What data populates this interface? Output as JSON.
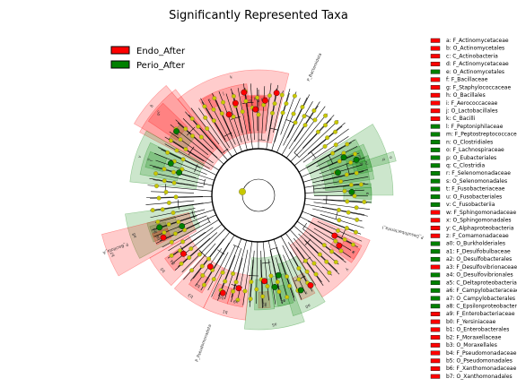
{
  "chart_data": {
    "type": "cladogram",
    "title": "Significantly Represented Taxa",
    "groups": [
      {
        "name": "Endo_After",
        "color": "#ff0000"
      },
      {
        "name": "Perio_After",
        "color": "#008000"
      }
    ],
    "node_color_not_significant": "#c8c800",
    "clades": [
      {
        "key": "a",
        "name": "F_Actinomycetaceae",
        "group": "Endo_After",
        "sector_label": "a"
      },
      {
        "key": "b",
        "name": "O_Actinomycetales",
        "group": "Endo_After",
        "sector_label": "b"
      },
      {
        "key": "c",
        "name": "C_Actinobacteria",
        "group": "Endo_After",
        "sector_label": "c"
      },
      {
        "key": "d",
        "name": "F_Actinomycetaceae",
        "group": "Endo_After",
        "sector_label": "d"
      },
      {
        "key": "e",
        "name": "O_Actinomycetales",
        "group": "Perio_After",
        "sector_label": "e"
      },
      {
        "key": "f",
        "name": "F_Bacillaceae",
        "group": "Endo_After",
        "sector_label": "f"
      },
      {
        "key": "g",
        "name": "F_Staphylococcaceae",
        "group": "Endo_After",
        "sector_label": "g"
      },
      {
        "key": "h",
        "name": "O_Bacillales",
        "group": "Endo_After",
        "sector_label": "h"
      },
      {
        "key": "i",
        "name": "F_Aerococcaceae",
        "group": "Endo_After",
        "sector_label": "i"
      },
      {
        "key": "j",
        "name": "O_Lactobacillales",
        "group": "Endo_After",
        "sector_label": "j"
      },
      {
        "key": "k",
        "name": "C_Bacilli",
        "group": "Endo_After",
        "sector_label": "k"
      },
      {
        "key": "l",
        "name": "F_Peptoniphilaceae",
        "group": "Perio_After",
        "sector_label": "l"
      },
      {
        "key": "m",
        "name": "F_Peptostreptococcaceae",
        "group": "Perio_After",
        "sector_label": "m"
      },
      {
        "key": "n",
        "name": "O_Clostridiales",
        "group": "Perio_After",
        "sector_label": "n"
      },
      {
        "key": "o",
        "name": "F_Lachnospiraceae",
        "group": "Perio_After",
        "sector_label": "o"
      },
      {
        "key": "p",
        "name": "O_Eubacteriales",
        "group": "Perio_After",
        "sector_label": "p"
      },
      {
        "key": "q",
        "name": "C_Clostridia",
        "group": "Perio_After",
        "sector_label": "q"
      },
      {
        "key": "r",
        "name": "F_Selenomonadaceae",
        "group": "Perio_After",
        "sector_label": "r"
      },
      {
        "key": "s",
        "name": "O_Selenomonadales",
        "group": "Perio_After",
        "sector_label": "s"
      },
      {
        "key": "t",
        "name": "F_Fusobacteriaceae",
        "group": "Perio_After",
        "sector_label": "t"
      },
      {
        "key": "u",
        "name": "O_Fusobacteriales",
        "group": "Perio_After",
        "sector_label": "u"
      },
      {
        "key": "v",
        "name": "C_Fusobacteriia",
        "group": "Perio_After",
        "sector_label": "v"
      },
      {
        "key": "w",
        "name": "F_Sphingomonadaceae",
        "group": "Endo_After",
        "sector_label": "w"
      },
      {
        "key": "x",
        "name": "O_Sphingomonadales",
        "group": "Endo_After",
        "sector_label": "x"
      },
      {
        "key": "y",
        "name": "C_Alphaproteobacteria",
        "group": "Endo_After",
        "sector_label": "y"
      },
      {
        "key": "z",
        "name": "F_Comamonadaceae",
        "group": "Endo_After",
        "sector_label": "z"
      },
      {
        "key": "a0",
        "name": "O_Burkholderiales",
        "group": "Perio_After",
        "sector_label": "a0"
      },
      {
        "key": "a1",
        "name": "F_Desulfobulbaceae",
        "group": "Perio_After",
        "sector_label": "a1"
      },
      {
        "key": "a2",
        "name": "O_Desulfobacterales",
        "group": "Perio_After",
        "sector_label": "a2"
      },
      {
        "key": "a3",
        "name": "F_Desulfovibrionaceae",
        "group": "Endo_After",
        "sector_label": "a3"
      },
      {
        "key": "a4",
        "name": "O_Desulfovibrionales",
        "group": "Perio_After",
        "sector_label": "a4"
      },
      {
        "key": "a5",
        "name": "C_Deltaproteobacteria",
        "group": "Perio_After",
        "sector_label": "a5"
      },
      {
        "key": "a6",
        "name": "F_Campylobacteraceae",
        "group": "Perio_After",
        "sector_label": "a6"
      },
      {
        "key": "a7",
        "name": "O_Campylobacterales",
        "group": "Perio_After",
        "sector_label": "a7"
      },
      {
        "key": "a8",
        "name": "C_Epsilonproteobacter",
        "group": "Perio_After",
        "sector_label": "a8"
      },
      {
        "key": "a9",
        "name": "F_Enterobacteriaceae",
        "group": "Endo_After",
        "sector_label": "a9"
      },
      {
        "key": "b0",
        "name": "F_Yersiniaceae",
        "group": "Endo_After",
        "sector_label": "b0"
      },
      {
        "key": "b1",
        "name": "O_Enterobacterales",
        "group": "Endo_After",
        "sector_label": "b1"
      },
      {
        "key": "b2",
        "name": "F_Moraxellaceae",
        "group": "Endo_After",
        "sector_label": "b2"
      },
      {
        "key": "b3",
        "name": "O_Moraxellales",
        "group": "Endo_After",
        "sector_label": "b3"
      },
      {
        "key": "b4",
        "name": "F_Pseudomonadaceae",
        "group": "Endo_After",
        "sector_label": "b4"
      },
      {
        "key": "b5",
        "name": "O_Pseudomonadales",
        "group": "Endo_After",
        "sector_label": "b5"
      },
      {
        "key": "b6",
        "name": "F_Xanthomonadaceae",
        "group": "Endo_After",
        "sector_label": "b6"
      },
      {
        "key": "b7",
        "name": "O_Xanthomonadales",
        "group": "Endo_After",
        "sector_label": "b7"
      }
    ],
    "phylum_labels": [
      "P_Bacteroidota",
      "P_Desulfobacterota_I",
      "P_Bacillota_A",
      "P_Pseudomonadota"
    ]
  }
}
